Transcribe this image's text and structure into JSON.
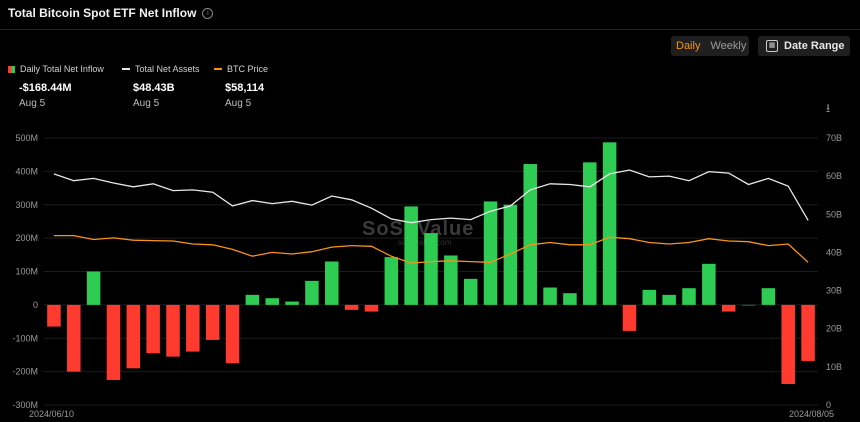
{
  "title": "Total Bitcoin Spot ETF Net Inflow",
  "controls": {
    "daily": "Daily",
    "weekly": "Weekly",
    "date_range": "Date Range"
  },
  "legend": [
    {
      "name": "Daily Total Net Inflow",
      "value": "-$168.44M",
      "date": "Aug 5"
    },
    {
      "name": "Total Net Assets",
      "value": "$48.43B",
      "date": "Aug 5"
    },
    {
      "name": "BTC Price",
      "value": "$58,114",
      "date": "Aug 5"
    }
  ],
  "watermark": "SoSoValue",
  "watermark_sub": "sosovalue.com",
  "colors": {
    "positive": "#2ecc53",
    "negative": "#ff3b30",
    "assets_line": "#e8e8e8",
    "price_line": "#f7931a",
    "accent": "#f7931a"
  },
  "chart_data": {
    "type": "bar",
    "title": "Total Bitcoin Spot ETF Net Inflow",
    "x_start_label": "2024/06/10",
    "x_end_label": "2024/08/05",
    "y_left": {
      "min": -300,
      "max": 500,
      "unit": "M",
      "ticks": [
        "-300M",
        "-200M",
        "-100M",
        "0",
        "100M",
        "200M",
        "300M",
        "400M",
        "500M"
      ],
      "tick_values": [
        -300,
        -200,
        -100,
        0,
        100,
        200,
        300,
        400,
        500
      ]
    },
    "y_right": {
      "min": 0,
      "max": 70,
      "unit": "B",
      "ticks": [
        "0",
        "10B",
        "20B",
        "30B",
        "40B",
        "50B",
        "60B",
        "70B"
      ],
      "tick_values": [
        0,
        10,
        20,
        30,
        40,
        50,
        60,
        70
      ]
    },
    "daily_net_inflow": [
      -65,
      -200,
      100,
      -225,
      -190,
      -145,
      -155,
      -140,
      -105,
      -175,
      30,
      20,
      10,
      72,
      130,
      -15,
      -20,
      143,
      295,
      215,
      148,
      78,
      310,
      300,
      422,
      52,
      35,
      427,
      487,
      -78,
      45,
      30,
      50,
      123,
      -20,
      0,
      50,
      -237,
      -168
    ],
    "total_net_assets": [
      60.6,
      58.8,
      59.4,
      58.2,
      57.2,
      58.0,
      56.2,
      56.4,
      55.8,
      52.2,
      53.6,
      52.8,
      53.4,
      52.4,
      54.8,
      53.8,
      51.6,
      48.8,
      47.8,
      48.6,
      49.0,
      48.6,
      50.8,
      52.2,
      56.4,
      58.0,
      57.8,
      57.2,
      60.6,
      61.6,
      59.8,
      60.0,
      58.8,
      61.2,
      60.8,
      57.8,
      59.4,
      57.4,
      48.43
    ],
    "btc_price": [
      44.4,
      44.4,
      43.4,
      43.8,
      43.2,
      43.1,
      43.0,
      42.2,
      42.0,
      40.8,
      39.0,
      40.0,
      39.6,
      40.2,
      41.4,
      41.8,
      41.6,
      39.0,
      37.2,
      37.6,
      37.8,
      37.6,
      37.4,
      39.6,
      42.0,
      42.6,
      42.0,
      42.0,
      44.0,
      43.6,
      42.6,
      42.2,
      42.6,
      43.6,
      43.0,
      42.8,
      41.8,
      42.2,
      37.4
    ]
  }
}
